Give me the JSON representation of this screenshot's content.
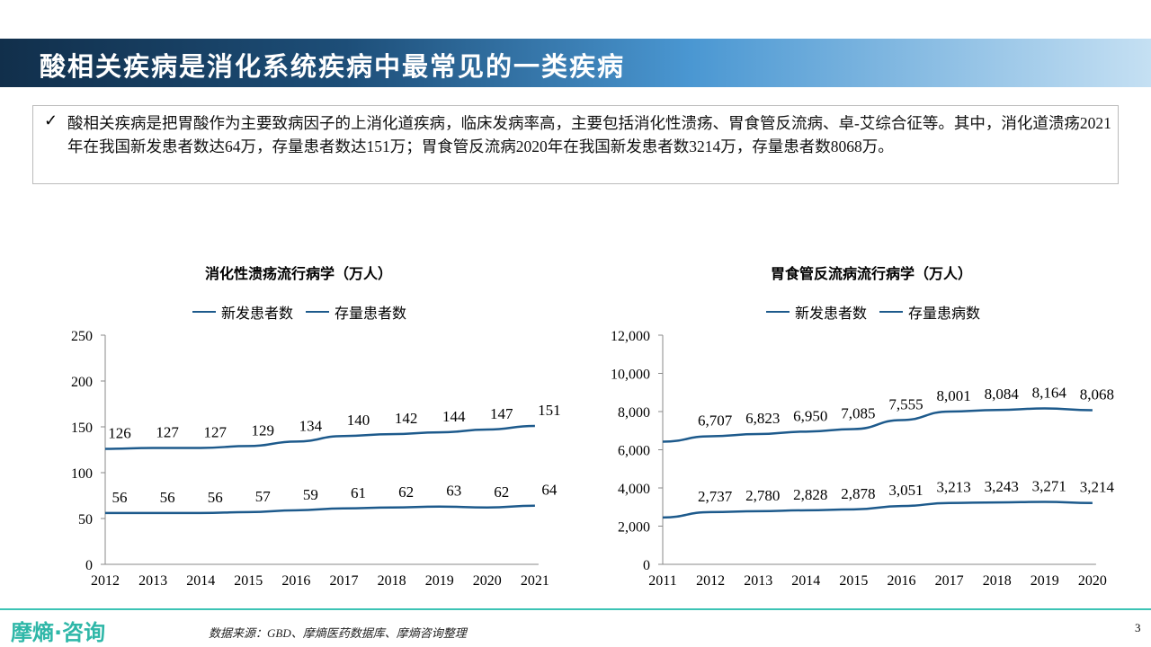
{
  "header": {
    "title": "酸相关疾病是消化系统疾病中最常见的一类疾病"
  },
  "summary": {
    "check_icon": "checkmark-icon",
    "text": "酸相关疾病是把胃酸作为主要致病因子的上消化道疾病，临床发病率高，主要包括消化性溃疡、胃食管反流病、卓-艾综合征等。其中，消化道溃疡2021年在我国新发患者数达64万，存量患者数达151万；胃食管反流病2020年在我国新发患者数3214万，存量患者数8068万。"
  },
  "chart_data": [
    {
      "type": "line",
      "title": "消化性溃疡流行病学（万人）",
      "categories": [
        "2012",
        "2013",
        "2014",
        "2015",
        "2016",
        "2017",
        "2018",
        "2019",
        "2020",
        "2021"
      ],
      "series": [
        {
          "name": "新发患者数",
          "values": [
            56,
            56,
            56,
            57,
            59,
            61,
            62,
            63,
            62,
            64
          ]
        },
        {
          "name": "存量患者数",
          "values": [
            126,
            127,
            127,
            129,
            134,
            140,
            142,
            144,
            147,
            151
          ]
        }
      ],
      "ylim": [
        0,
        250
      ],
      "yticks": [
        "0",
        "50",
        "100",
        "150",
        "200",
        "250"
      ],
      "color": "#1d5a8c",
      "legend": "top",
      "grid": false
    },
    {
      "type": "line",
      "title": "胃食管反流病流行病学（万人）",
      "categories": [
        "2011",
        "2012",
        "2013",
        "2014",
        "2015",
        "2016",
        "2017",
        "2018",
        "2019",
        "2020"
      ],
      "series": [
        {
          "name": "新发患者数",
          "values": [
            null,
            2737,
            2780,
            2828,
            2878,
            3051,
            3213,
            3243,
            3271,
            3214
          ],
          "labels": [
            "",
            "2,737",
            "2,780",
            "2,828",
            "2,878",
            "3,051",
            "3,213",
            "3,243",
            "3,271",
            "3,214"
          ]
        },
        {
          "name": "存量患病数",
          "values": [
            null,
            6707,
            6823,
            6950,
            7085,
            7555,
            8001,
            8084,
            8164,
            8068
          ],
          "labels": [
            "",
            "6,707",
            "6,823",
            "6,950",
            "7,085",
            "7,555",
            "8,001",
            "8,084",
            "8,164",
            "8,068"
          ]
        }
      ],
      "ylim": [
        0,
        12000
      ],
      "yticks": [
        "0",
        "2,000",
        "4,000",
        "6,000",
        "8,000",
        "10,000",
        "12,000"
      ],
      "color": "#1d5a8c",
      "legend": "top",
      "grid": false
    }
  ],
  "footer": {
    "logo": "摩熵·咨询",
    "source": "数据来源：GBD、摩熵医药数据库、摩熵咨询整理",
    "page": "3"
  }
}
